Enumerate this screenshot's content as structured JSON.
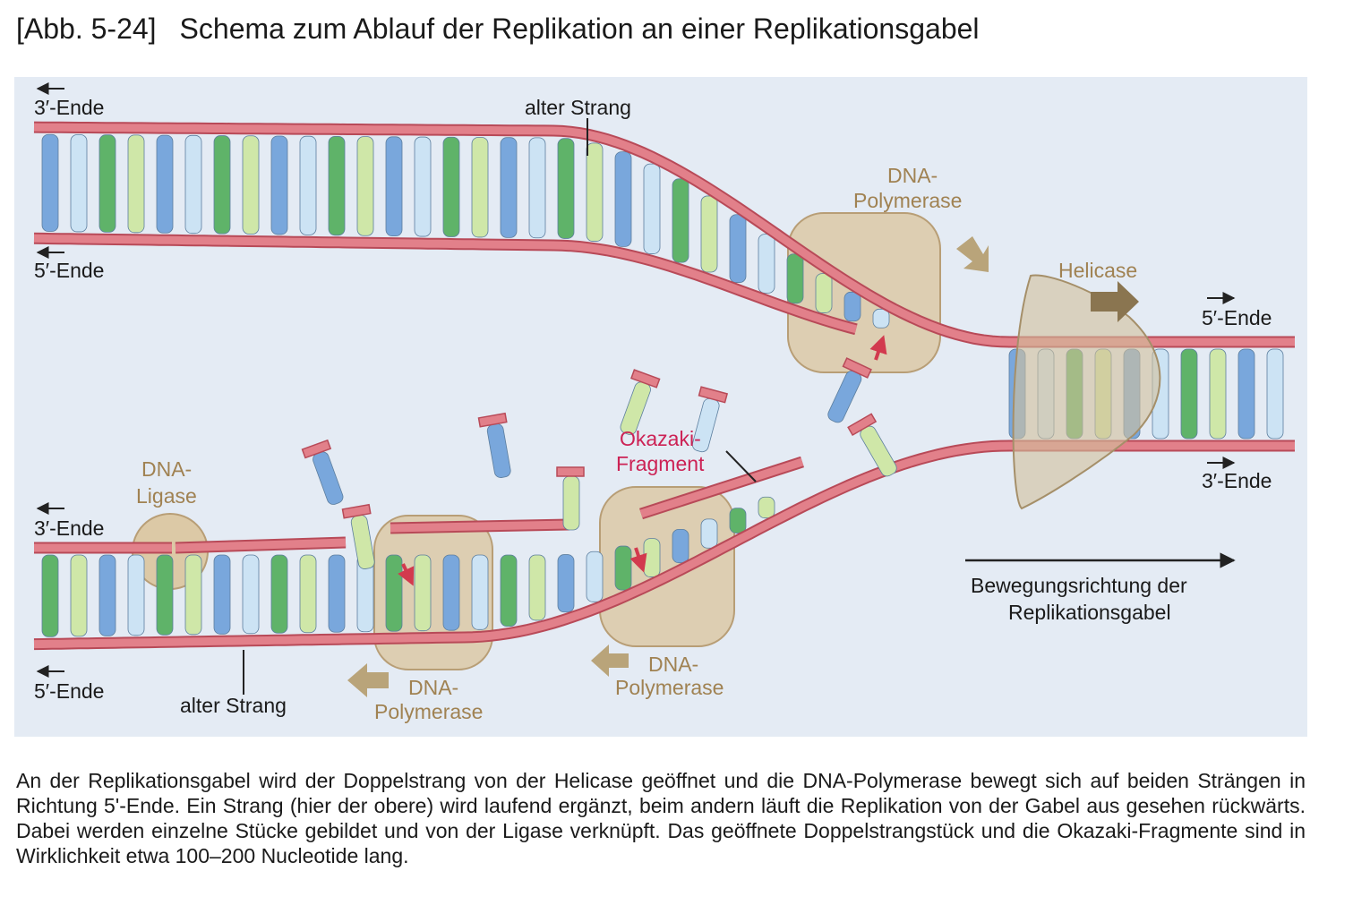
{
  "title": {
    "tag": "[Abb. 5-24]",
    "text": "Schema zum Ablauf der Replikation an einer Replikationsgabel"
  },
  "diagram": {
    "labels": {
      "top_3_ende": "3′-Ende",
      "top_5_ende": "5′-Ende",
      "alter_strang_top": "alter Strang",
      "polymerase_top_1": "DNA-",
      "polymerase_top_2": "Polymerase",
      "helicase": "Helicase",
      "right_5_ende": "5′-Ende",
      "right_3_ende": "3′-Ende",
      "okazaki_1": "Okazaki-",
      "okazaki_2": "Fragment",
      "ligase_1": "DNA-",
      "ligase_2": "Ligase",
      "bottom_3_ende": "3′-Ende",
      "bottom_5_ende": "5′-Ende",
      "alter_strang_bottom": "alter Strang",
      "polymerase_bl_1": "DNA-",
      "polymerase_bl_2": "Polymerase",
      "polymerase_bm_1": "DNA-",
      "polymerase_bm_2": "Polymerase",
      "direction_1": "Bewegungsrichtung der",
      "direction_2": "Replikationsgabel"
    },
    "colors": {
      "background": "#e4ebf4",
      "strand": "#e2808a",
      "strand_edge": "#b84a58",
      "base_blue": "#79a7dc",
      "base_green": "#5fb369",
      "base_lightblue": "#cce3f4",
      "base_lightgreen": "#cfe7a8",
      "enzyme": "#dcc9a6",
      "enzyme_edge": "#b89e76",
      "arrow_brown": "#b9a47a",
      "okazaki_text": "#cc2255",
      "enzyme_text": "#a08252"
    }
  },
  "caption": "An der Replikationsgabel wird der Doppelstrang von der Helicase geöffnet und die DNA-Polymerase bewegt sich auf beiden Strängen in Richtung 5'-Ende. Ein Strang (hier der obere) wird laufend ergänzt, beim andern läuft die Replikation von der Gabel aus gesehen rückwärts. Dabei werden einzelne Stücke gebildet und von der Ligase verknüpft. Das geöffnete Doppelstrangstück und die Okazaki-Fragmente sind in Wirklichkeit etwa 100–200 Nucleotide lang."
}
